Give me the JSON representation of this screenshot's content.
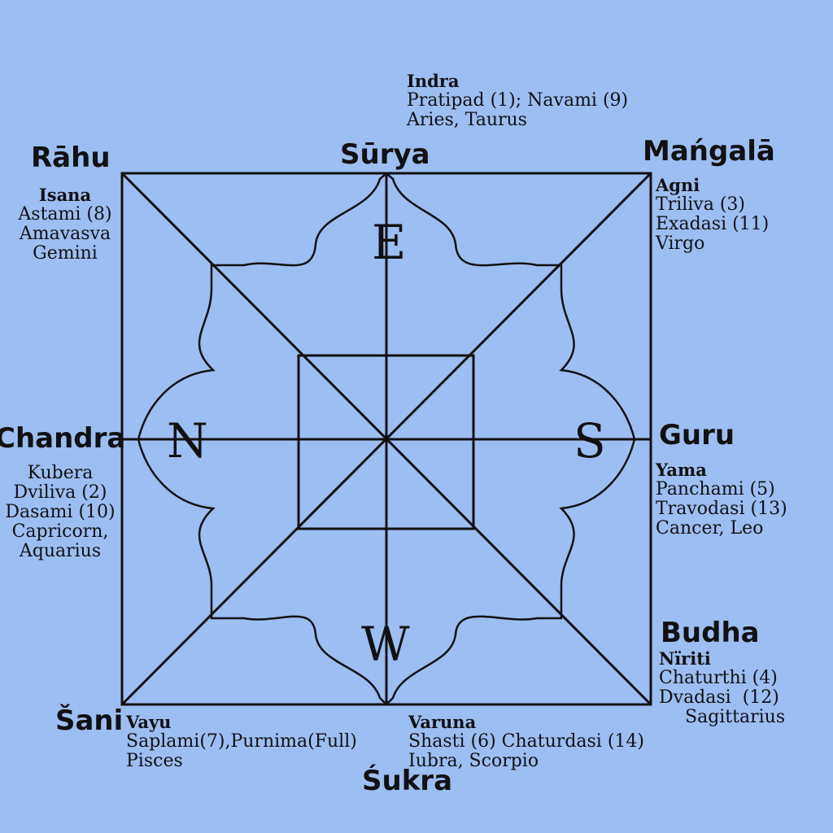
{
  "directions": {
    "east": "E",
    "north": "N",
    "south": "S",
    "west": "W"
  },
  "planets": {
    "surya": "Sūrya",
    "rahu": "Rāhu",
    "mangala": "Mańgalā",
    "chandra": "Chandra",
    "guru": "Guru",
    "budha": "Budha",
    "sani": "Šani",
    "sukra": "Śukra"
  },
  "blocks": {
    "top": {
      "deity": "Indra",
      "lines": [
        "Pratipad (1); Navami (9)",
        "Aries, Taurus"
      ]
    },
    "top_left": {
      "deity": "Isana",
      "lines": [
        "Astami (8)",
        "Amavasva",
        "Gemini"
      ]
    },
    "top_right": {
      "deity": "Agni",
      "lines": [
        "Triliva (3)",
        "Exadasi (11)",
        "Virgo"
      ]
    },
    "left": {
      "deity": "Kubera",
      "lines": [
        "Dviliva (2)",
        "Dasami (10)",
        "Capricorn,",
        "Aquarius"
      ]
    },
    "right": {
      "deity": "Yama",
      "lines": [
        "Panchami (5)",
        "Travodasi (13)",
        "Cancer, Leo"
      ]
    },
    "bottom_right": {
      "deity": "Nïriti",
      "lines": [
        "Chaturthi (4)",
        "Dvadasi  (12)",
        "Sagittarius"
      ]
    },
    "bottom_left": {
      "deity": "Vayu",
      "lines": [
        "Saplami(7),Purnima(Full)",
        "Pisces"
      ]
    },
    "bottom": {
      "deity": "Varuna",
      "lines": [
        "Shasti (6) Chaturdasi (14)",
        "Iubra, Scorpio"
      ]
    }
  }
}
